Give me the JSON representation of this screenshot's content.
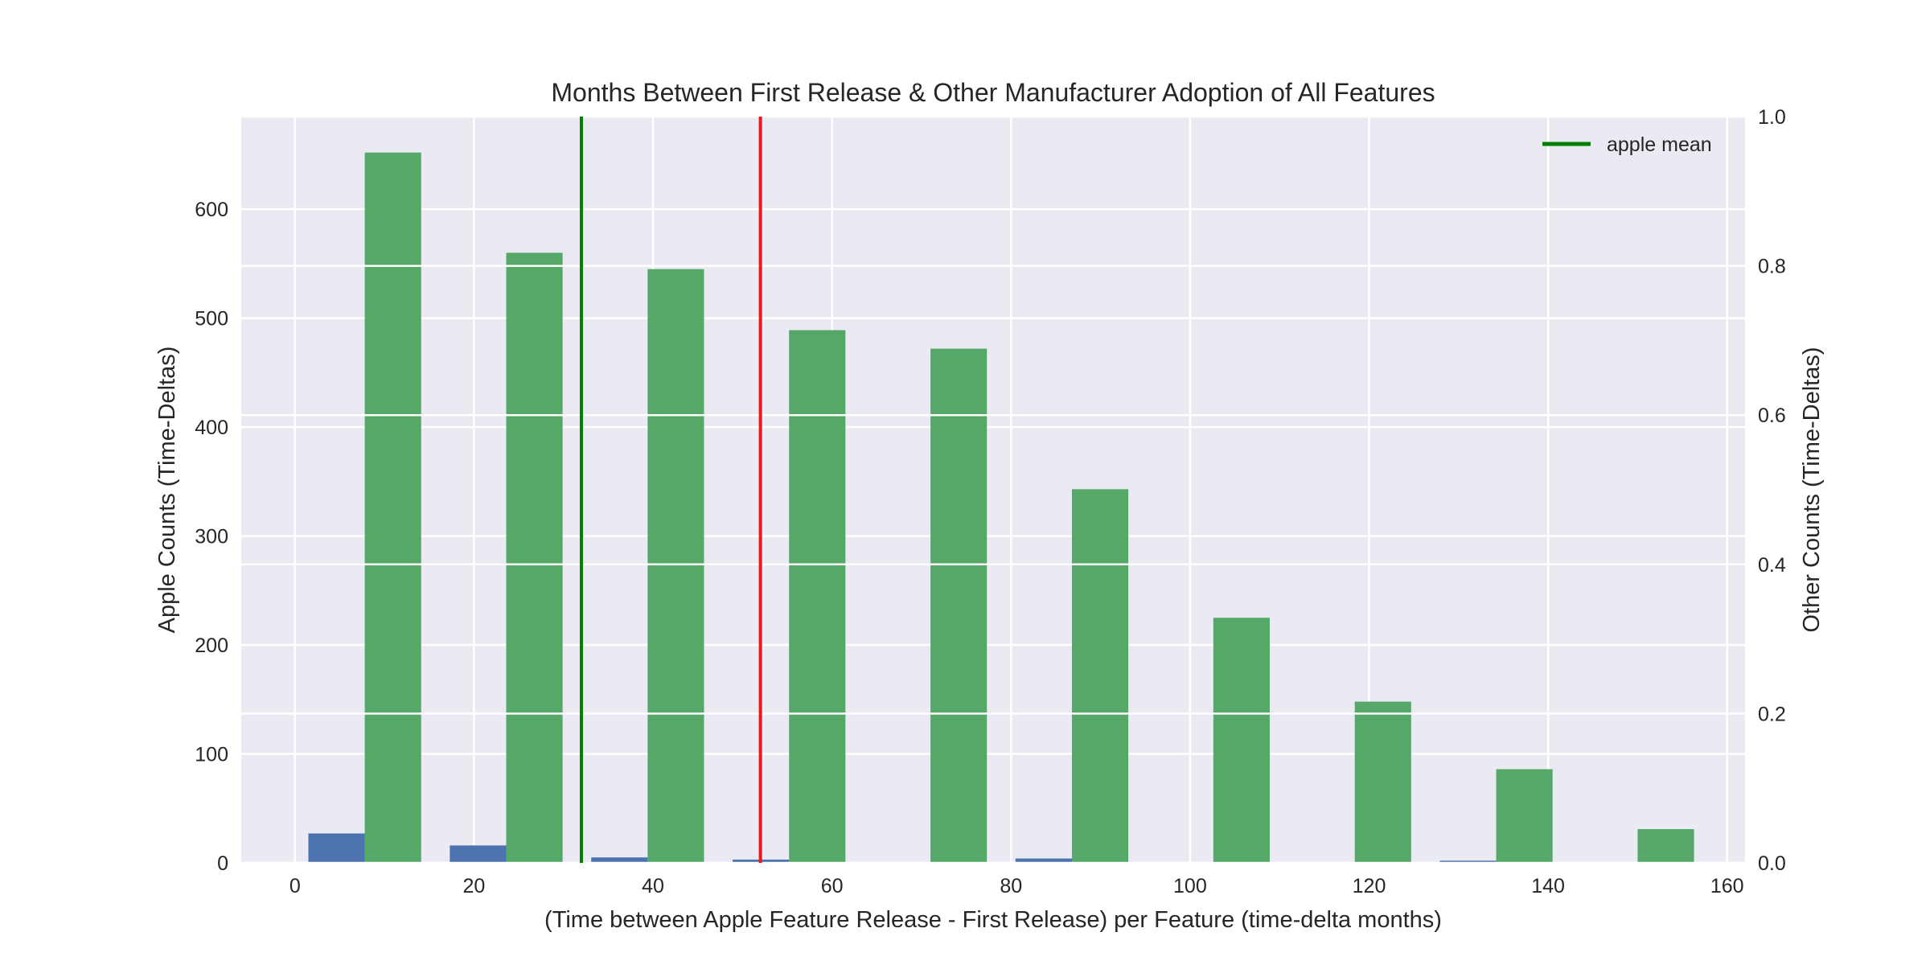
{
  "chart_data": {
    "type": "bar",
    "title": "Months Between First Release & Other Manufacturer Adoption of All Features",
    "xlabel": "(Time between Apple Feature Release - First Release) per Feature (time-delta months)",
    "ylabel": "Apple Counts (Time-Deltas)",
    "y2label": "Other Counts (Time-Deltas)",
    "xlim": [
      -6,
      162
    ],
    "ylim": [
      0,
      685
    ],
    "y2lim": [
      0,
      1.0
    ],
    "x_ticks": [
      "0",
      "20",
      "40",
      "60",
      "80",
      "100",
      "120",
      "140",
      "160"
    ],
    "y_ticks": [
      "0",
      "100",
      "200",
      "300",
      "400",
      "500",
      "600"
    ],
    "y2_ticks": [
      "0.0",
      "0.2",
      "0.4",
      "0.6",
      "0.8",
      "1.0"
    ],
    "grid": true,
    "bar_width": 6.3,
    "series": [
      {
        "color": "#4c72b0",
        "x_left": [
          1.5,
          17.3,
          33.1,
          48.9,
          64.7,
          80.5,
          96.3,
          112.1,
          127.9,
          143.7
        ],
        "values": [
          27,
          16,
          5,
          3,
          0,
          4,
          0,
          0,
          2,
          0
        ]
      },
      {
        "color": "#55a868",
        "x_left": [
          7.8,
          23.6,
          39.4,
          55.2,
          71.0,
          86.8,
          102.6,
          118.4,
          134.2,
          150.0
        ],
        "values": [
          652,
          560,
          545,
          489,
          472,
          343,
          225,
          148,
          86,
          31
        ]
      }
    ],
    "vlines": [
      {
        "name": "apple mean",
        "x": 32,
        "color": "#008000"
      },
      {
        "x": 52,
        "color": "#e41a1c"
      }
    ],
    "legend": {
      "placement": "top-right",
      "entries": [
        "apple mean"
      ]
    }
  }
}
